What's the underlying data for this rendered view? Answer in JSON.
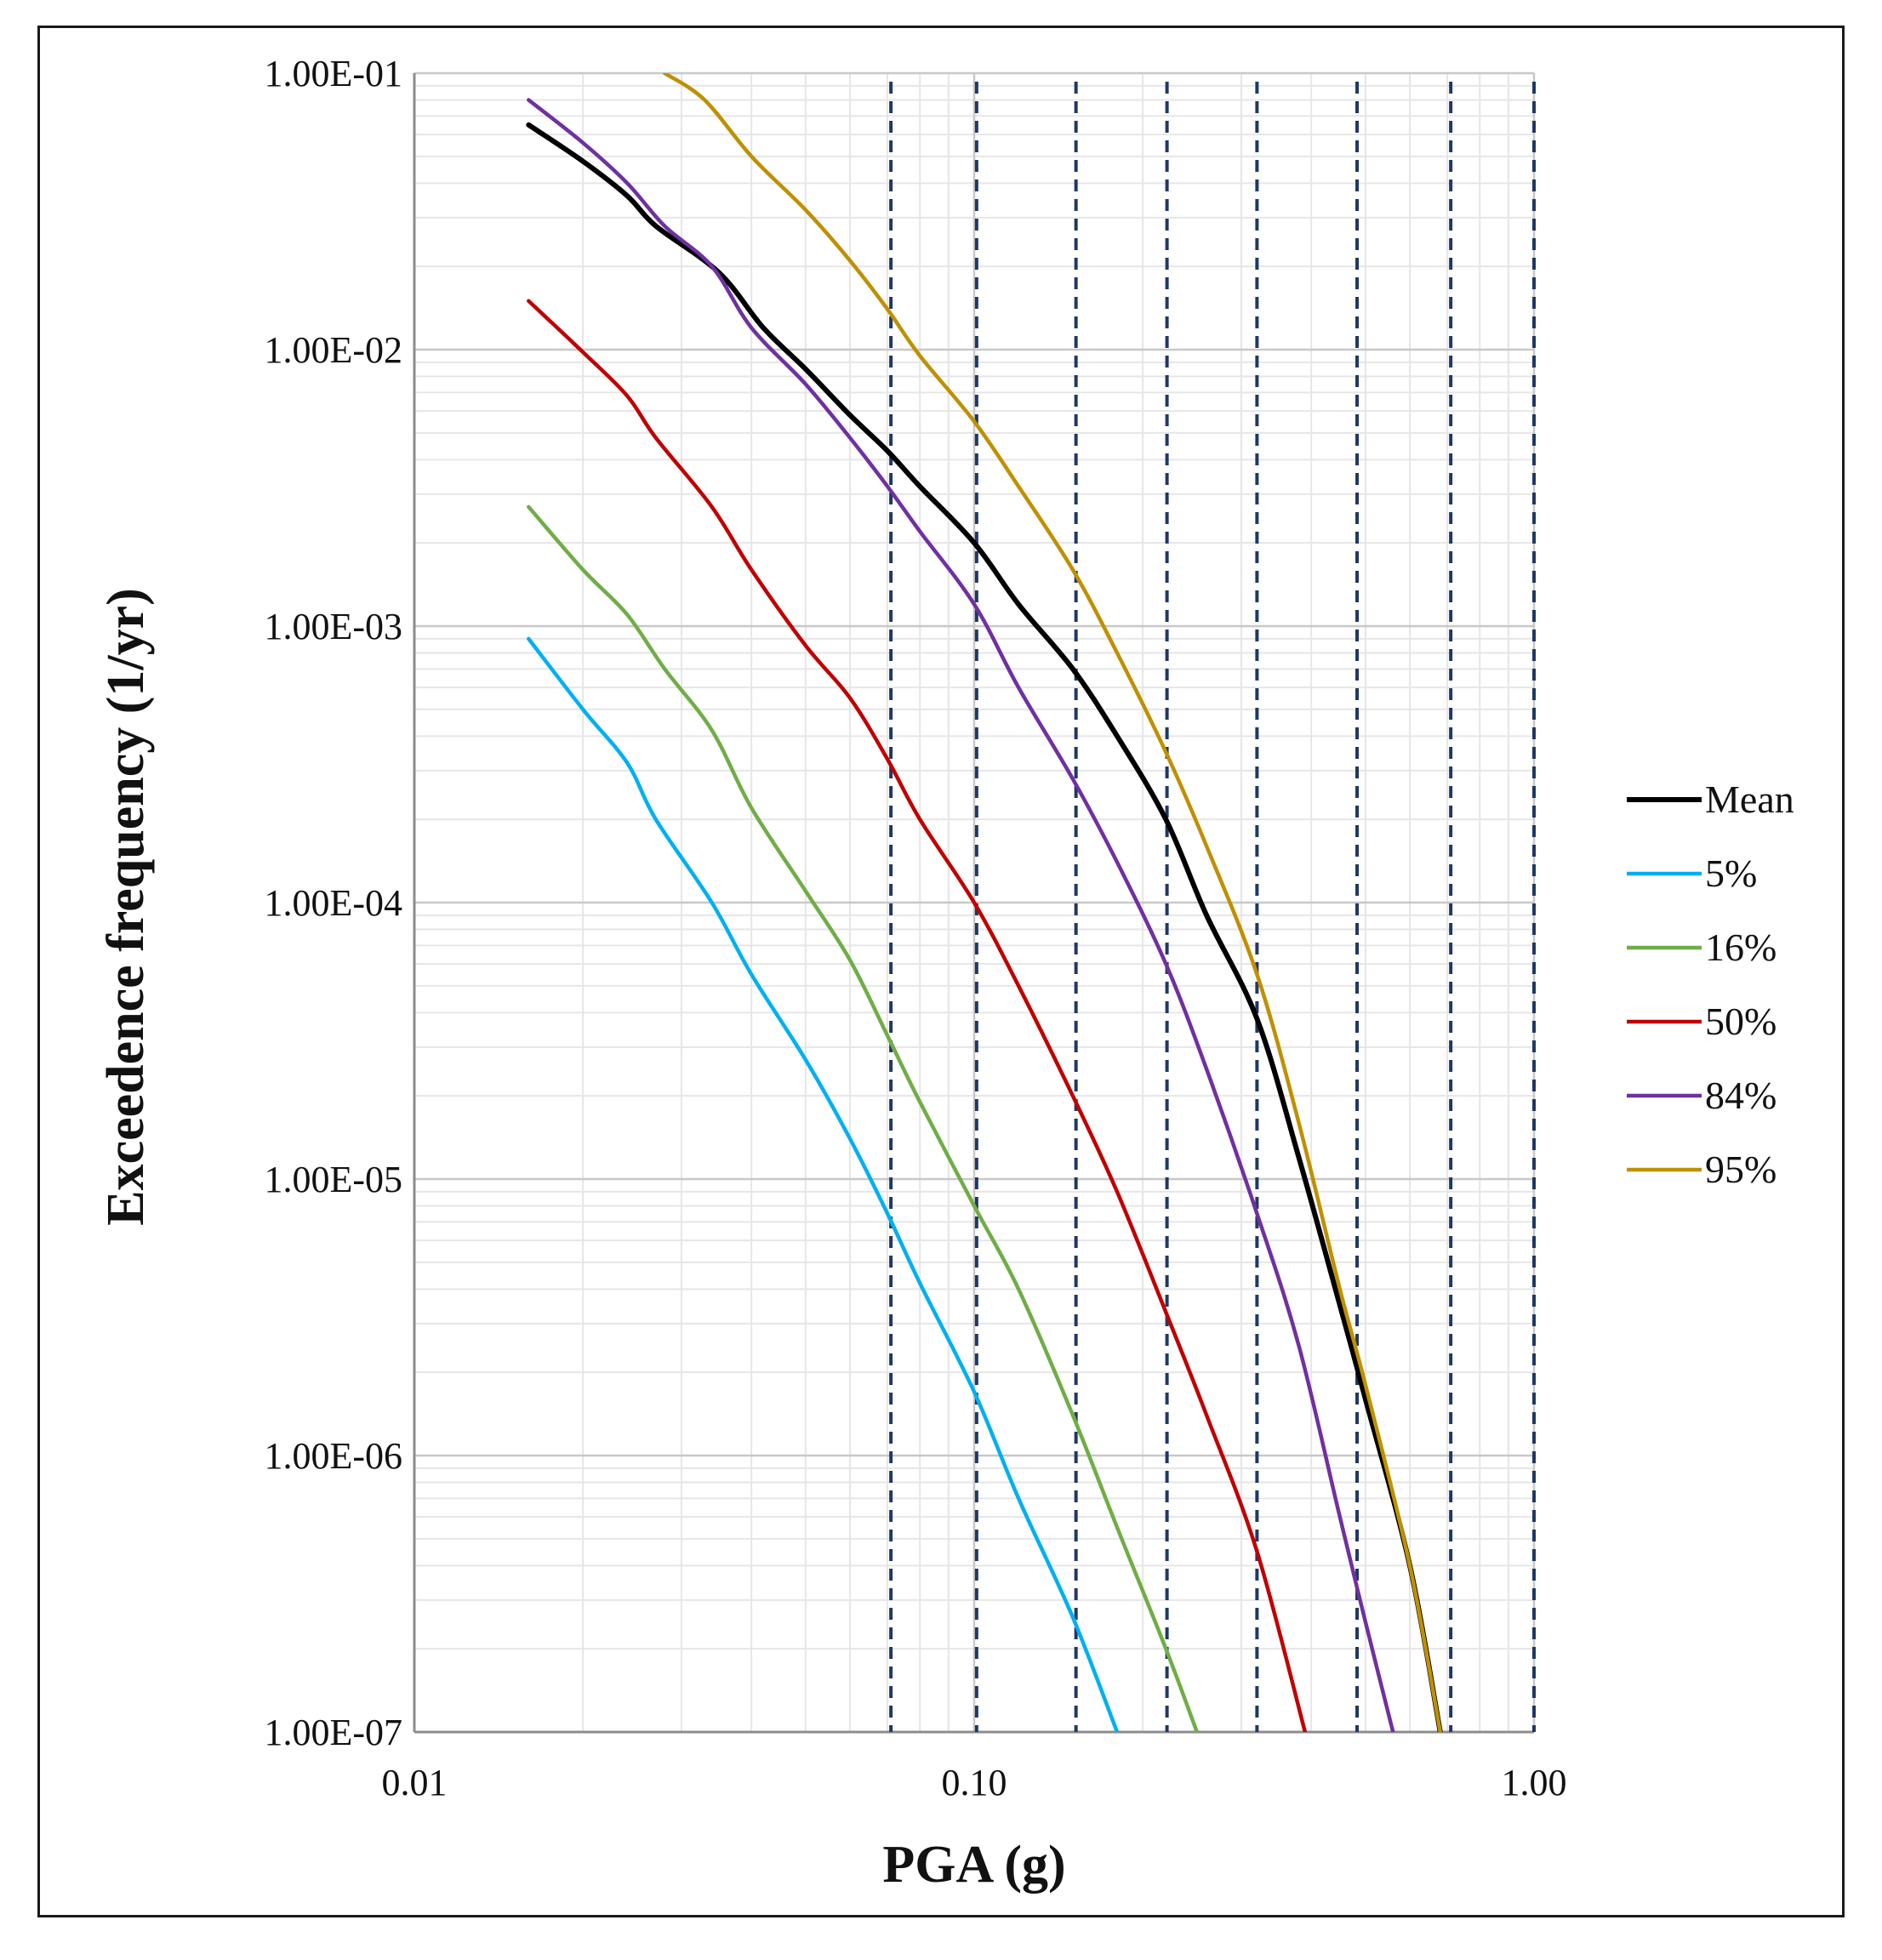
{
  "chart_data": {
    "type": "line",
    "title": "",
    "xlabel": "PGA (g)",
    "ylabel": "Exceedence frequency (1/yr)",
    "xscale": "log",
    "yscale": "log",
    "xlim": [
      0.01,
      1.0
    ],
    "ylim": [
      1e-07,
      0.1
    ],
    "grid": true,
    "legend_position": "right",
    "x_tick_values": [
      0.01,
      0.1,
      1.0
    ],
    "x_tick_labels": [
      "0.01",
      "0.10",
      "1.00"
    ],
    "y_tick_values": [
      0.1,
      0.01,
      0.001,
      0.0001,
      1e-05,
      1e-06,
      1e-07
    ],
    "y_tick_labels": [
      "1.00E-01",
      "1.00E-02",
      "1.00E-03",
      "1.00E-04",
      "1.00E-05",
      "1.00E-06",
      "1.00E-07"
    ],
    "vertical_reference_lines": {
      "color": "#1f3864",
      "style": "dashed",
      "x": [
        0.071,
        0.101,
        0.152,
        0.221,
        0.32,
        0.483,
        0.71,
        1.0
      ]
    },
    "series": [
      {
        "name": "Mean",
        "color": "#000000",
        "x": [
          0.016,
          0.02,
          0.024,
          0.027,
          0.035,
          0.042,
          0.05,
          0.06,
          0.07,
          0.08,
          0.1,
          0.12,
          0.15,
          0.18,
          0.22,
          0.26,
          0.32,
          0.38,
          0.45,
          0.5,
          0.6,
          0.68
        ],
        "y": [
          0.065,
          0.048,
          0.036,
          0.028,
          0.019,
          0.012,
          0.0085,
          0.0058,
          0.0043,
          0.0032,
          0.002,
          0.0012,
          0.0007,
          0.0004,
          0.0002,
          9e-05,
          3.8e-05,
          1.2e-05,
          3.5e-06,
          1.6e-06,
          4e-07,
          1e-07
        ]
      },
      {
        "name": "5%",
        "color": "#00b0f0",
        "x": [
          0.016,
          0.02,
          0.024,
          0.027,
          0.034,
          0.04,
          0.05,
          0.06,
          0.07,
          0.08,
          0.1,
          0.12,
          0.15,
          0.18
        ],
        "y": [
          0.0009,
          0.0005,
          0.00032,
          0.0002,
          0.0001,
          5.5e-05,
          2.7e-05,
          1.4e-05,
          7.5e-06,
          4.2e-06,
          1.7e-06,
          7e-07,
          2.6e-07,
          1e-07
        ]
      },
      {
        "name": "16%",
        "color": "#70ad47",
        "x": [
          0.016,
          0.02,
          0.024,
          0.028,
          0.034,
          0.04,
          0.05,
          0.06,
          0.07,
          0.08,
          0.1,
          0.12,
          0.15,
          0.18,
          0.22,
          0.25
        ],
        "y": [
          0.0027,
          0.0016,
          0.0011,
          0.0007,
          0.00042,
          0.00022,
          0.00011,
          6.2e-05,
          3.3e-05,
          1.9e-05,
          8e-06,
          4e-06,
          1.4e-06,
          5.5e-07,
          2e-07,
          1e-07
        ]
      },
      {
        "name": "50%",
        "color": "#c00000",
        "x": [
          0.016,
          0.02,
          0.024,
          0.027,
          0.034,
          0.04,
          0.05,
          0.06,
          0.07,
          0.08,
          0.1,
          0.12,
          0.15,
          0.18,
          0.22,
          0.26,
          0.32,
          0.39
        ],
        "y": [
          0.015,
          0.0098,
          0.0068,
          0.0048,
          0.0027,
          0.0016,
          0.00085,
          0.00055,
          0.00033,
          0.0002,
          0.0001,
          5e-05,
          2e-05,
          9e-06,
          3.3e-06,
          1.4e-06,
          4.5e-07,
          1e-07
        ]
      },
      {
        "name": "84%",
        "color": "#7030a0",
        "x": [
          0.016,
          0.02,
          0.024,
          0.028,
          0.034,
          0.04,
          0.05,
          0.06,
          0.07,
          0.08,
          0.1,
          0.12,
          0.15,
          0.18,
          0.22,
          0.26,
          0.32,
          0.38,
          0.45,
          0.5,
          0.56
        ],
        "y": [
          0.08,
          0.056,
          0.04,
          0.028,
          0.02,
          0.012,
          0.0075,
          0.0048,
          0.0032,
          0.0022,
          0.0012,
          0.0006,
          0.00028,
          0.00014,
          6e-05,
          2.5e-05,
          7.5e-06,
          2.5e-06,
          6e-07,
          2.5e-07,
          1e-07
        ]
      },
      {
        "name": "95%",
        "color": "#bf9000",
        "x": [
          0.028,
          0.033,
          0.04,
          0.05,
          0.06,
          0.07,
          0.08,
          0.1,
          0.12,
          0.15,
          0.18,
          0.22,
          0.26,
          0.32,
          0.38,
          0.45,
          0.5,
          0.6,
          0.68
        ],
        "y": [
          0.1,
          0.08,
          0.05,
          0.032,
          0.021,
          0.014,
          0.0095,
          0.0055,
          0.0032,
          0.0016,
          0.0008,
          0.00035,
          0.00016,
          5.5e-05,
          1.6e-05,
          4e-06,
          1.8e-06,
          4e-07,
          1e-07
        ]
      }
    ]
  }
}
